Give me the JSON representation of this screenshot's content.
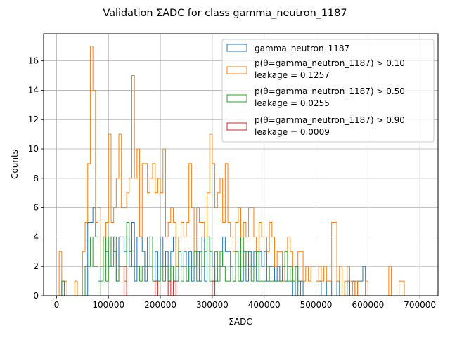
{
  "chart_data": {
    "type": "histogram-step",
    "title": "Validation ΣADC for class gamma_neutron_1187",
    "xlabel": "ΣADC",
    "ylabel": "Counts",
    "xlim": [
      -25000,
      735000
    ],
    "ylim": [
      0,
      17.85
    ],
    "xticks": [
      0,
      100000,
      200000,
      300000,
      400000,
      500000,
      600000,
      700000
    ],
    "xtick_labels": [
      "0",
      "100000",
      "200000",
      "300000",
      "400000",
      "500000",
      "600000",
      "700000"
    ],
    "yticks": [
      0,
      2,
      4,
      6,
      8,
      10,
      12,
      14,
      16
    ],
    "ytick_labels": [
      "0",
      "2",
      "4",
      "6",
      "8",
      "10",
      "12",
      "14",
      "16"
    ],
    "grid": true,
    "legend_position": "top-right",
    "bin_width": 5000,
    "series": [
      {
        "name": "gamma_neutron_1187",
        "color": "#1f77b4",
        "points": [
          [
            10000,
            1
          ],
          [
            60000,
            5
          ],
          [
            65000,
            5
          ],
          [
            70000,
            6
          ],
          [
            75000,
            4
          ],
          [
            80000,
            1
          ],
          [
            85000,
            2
          ],
          [
            90000,
            4
          ],
          [
            95000,
            3
          ],
          [
            100000,
            2
          ],
          [
            105000,
            4
          ],
          [
            110000,
            3
          ],
          [
            115000,
            1
          ],
          [
            120000,
            4
          ],
          [
            125000,
            4
          ],
          [
            130000,
            3
          ],
          [
            135000,
            4
          ],
          [
            140000,
            2
          ],
          [
            145000,
            5
          ],
          [
            150000,
            1
          ],
          [
            155000,
            4
          ],
          [
            160000,
            4
          ],
          [
            165000,
            3
          ],
          [
            170000,
            1
          ],
          [
            175000,
            4
          ],
          [
            180000,
            2
          ],
          [
            185000,
            1
          ],
          [
            190000,
            3
          ],
          [
            195000,
            1
          ],
          [
            200000,
            4
          ],
          [
            205000,
            2
          ],
          [
            210000,
            3
          ],
          [
            215000,
            1
          ],
          [
            220000,
            3
          ],
          [
            225000,
            4
          ],
          [
            230000,
            1
          ],
          [
            235000,
            3
          ],
          [
            240000,
            2
          ],
          [
            245000,
            3
          ],
          [
            250000,
            1
          ],
          [
            255000,
            3
          ],
          [
            260000,
            1
          ],
          [
            265000,
            2
          ],
          [
            270000,
            3
          ],
          [
            275000,
            1
          ],
          [
            280000,
            4
          ],
          [
            285000,
            1
          ],
          [
            290000,
            4
          ],
          [
            295000,
            3
          ],
          [
            300000,
            2
          ],
          [
            305000,
            1
          ],
          [
            310000,
            2
          ],
          [
            315000,
            2
          ],
          [
            320000,
            4
          ],
          [
            325000,
            3
          ],
          [
            330000,
            3
          ],
          [
            335000,
            2
          ],
          [
            340000,
            1
          ],
          [
            345000,
            3
          ],
          [
            350000,
            2
          ],
          [
            355000,
            1
          ],
          [
            360000,
            3
          ],
          [
            365000,
            1
          ],
          [
            370000,
            3
          ],
          [
            375000,
            2
          ],
          [
            380000,
            3
          ],
          [
            385000,
            1
          ],
          [
            390000,
            3
          ],
          [
            395000,
            2
          ],
          [
            400000,
            3
          ],
          [
            405000,
            1
          ],
          [
            410000,
            2
          ],
          [
            415000,
            2
          ],
          [
            420000,
            1
          ],
          [
            425000,
            2
          ],
          [
            430000,
            1
          ],
          [
            435000,
            2
          ],
          [
            440000,
            1
          ],
          [
            445000,
            2
          ],
          [
            450000,
            1
          ],
          [
            460000,
            2
          ],
          [
            470000,
            1
          ],
          [
            500000,
            1
          ],
          [
            505000,
            1
          ],
          [
            520000,
            1
          ],
          [
            525000,
            1
          ],
          [
            540000,
            1
          ],
          [
            560000,
            1
          ],
          [
            570000,
            1
          ],
          [
            580000,
            1
          ],
          [
            585000,
            1
          ],
          [
            590000,
            2
          ]
        ]
      },
      {
        "name": "p(θ=gamma_neutron_1187) > 0.10",
        "leakage": "leakage = 0.1257",
        "color": "#ff7f0e",
        "points": [
          [
            5000,
            3
          ],
          [
            10000,
            1
          ],
          [
            15000,
            1
          ],
          [
            35000,
            1
          ],
          [
            50000,
            3
          ],
          [
            55000,
            5
          ],
          [
            60000,
            9
          ],
          [
            65000,
            17
          ],
          [
            70000,
            14
          ],
          [
            75000,
            5
          ],
          [
            80000,
            6
          ],
          [
            85000,
            2
          ],
          [
            90000,
            4
          ],
          [
            95000,
            5
          ],
          [
            100000,
            11
          ],
          [
            105000,
            5
          ],
          [
            110000,
            6
          ],
          [
            115000,
            8
          ],
          [
            120000,
            11
          ],
          [
            125000,
            6
          ],
          [
            130000,
            6
          ],
          [
            135000,
            7
          ],
          [
            140000,
            8
          ],
          [
            145000,
            15
          ],
          [
            150000,
            8
          ],
          [
            155000,
            10
          ],
          [
            160000,
            4
          ],
          [
            165000,
            9
          ],
          [
            170000,
            9
          ],
          [
            175000,
            7
          ],
          [
            180000,
            8
          ],
          [
            185000,
            9
          ],
          [
            190000,
            7
          ],
          [
            195000,
            8
          ],
          [
            200000,
            7
          ],
          [
            205000,
            10
          ],
          [
            210000,
            4
          ],
          [
            215000,
            5
          ],
          [
            220000,
            6
          ],
          [
            225000,
            5
          ],
          [
            230000,
            2
          ],
          [
            235000,
            4
          ],
          [
            240000,
            5
          ],
          [
            245000,
            4
          ],
          [
            250000,
            5
          ],
          [
            255000,
            9
          ],
          [
            260000,
            6
          ],
          [
            265000,
            3
          ],
          [
            270000,
            6
          ],
          [
            275000,
            5
          ],
          [
            280000,
            5
          ],
          [
            285000,
            4
          ],
          [
            290000,
            7
          ],
          [
            295000,
            11
          ],
          [
            300000,
            9
          ],
          [
            305000,
            6
          ],
          [
            310000,
            7
          ],
          [
            315000,
            8
          ],
          [
            320000,
            5
          ],
          [
            325000,
            9
          ],
          [
            330000,
            5
          ],
          [
            335000,
            4
          ],
          [
            340000,
            3
          ],
          [
            345000,
            5
          ],
          [
            350000,
            6
          ],
          [
            355000,
            2
          ],
          [
            360000,
            5
          ],
          [
            365000,
            4
          ],
          [
            370000,
            6
          ],
          [
            375000,
            6
          ],
          [
            380000,
            4
          ],
          [
            385000,
            3
          ],
          [
            390000,
            5
          ],
          [
            395000,
            4
          ],
          [
            400000,
            4
          ],
          [
            405000,
            3
          ],
          [
            410000,
            5
          ],
          [
            415000,
            4
          ],
          [
            420000,
            2
          ],
          [
            425000,
            3
          ],
          [
            430000,
            3
          ],
          [
            435000,
            1
          ],
          [
            440000,
            3
          ],
          [
            445000,
            4
          ],
          [
            450000,
            3
          ],
          [
            455000,
            1
          ],
          [
            460000,
            2
          ],
          [
            465000,
            3
          ],
          [
            470000,
            3
          ],
          [
            475000,
            1
          ],
          [
            480000,
            2
          ],
          [
            485000,
            1
          ],
          [
            490000,
            2
          ],
          [
            495000,
            2
          ],
          [
            500000,
            1
          ],
          [
            505000,
            2
          ],
          [
            510000,
            1
          ],
          [
            515000,
            2
          ],
          [
            520000,
            1
          ],
          [
            525000,
            1
          ],
          [
            530000,
            5
          ],
          [
            535000,
            5
          ],
          [
            540000,
            1
          ],
          [
            545000,
            2
          ],
          [
            555000,
            1
          ],
          [
            560000,
            2
          ],
          [
            565000,
            1
          ],
          [
            575000,
            1
          ],
          [
            595000,
            1
          ],
          [
            640000,
            2
          ],
          [
            660000,
            1
          ],
          [
            665000,
            1
          ]
        ]
      },
      {
        "name": "p(θ=gamma_neutron_1187) > 0.50",
        "leakage": "leakage = 0.0255",
        "color": "#2ca02c",
        "points": [
          [
            10000,
            1
          ],
          [
            55000,
            2
          ],
          [
            60000,
            2
          ],
          [
            65000,
            4
          ],
          [
            70000,
            2
          ],
          [
            75000,
            2
          ],
          [
            85000,
            1
          ],
          [
            90000,
            4
          ],
          [
            95000,
            1
          ],
          [
            100000,
            4
          ],
          [
            105000,
            2
          ],
          [
            110000,
            4
          ],
          [
            115000,
            1
          ],
          [
            120000,
            2
          ],
          [
            125000,
            2
          ],
          [
            130000,
            1
          ],
          [
            135000,
            5
          ],
          [
            140000,
            3
          ],
          [
            145000,
            2
          ],
          [
            150000,
            2
          ],
          [
            155000,
            2
          ],
          [
            160000,
            1
          ],
          [
            165000,
            2
          ],
          [
            170000,
            2
          ],
          [
            175000,
            2
          ],
          [
            180000,
            4
          ],
          [
            185000,
            1
          ],
          [
            190000,
            1
          ],
          [
            195000,
            1
          ],
          [
            200000,
            2
          ],
          [
            205000,
            1
          ],
          [
            210000,
            2
          ],
          [
            215000,
            1
          ],
          [
            220000,
            2
          ],
          [
            225000,
            1
          ],
          [
            230000,
            2
          ],
          [
            235000,
            3
          ],
          [
            240000,
            1
          ],
          [
            245000,
            2
          ],
          [
            250000,
            1
          ],
          [
            255000,
            2
          ],
          [
            260000,
            2
          ],
          [
            265000,
            3
          ],
          [
            270000,
            1
          ],
          [
            275000,
            3
          ],
          [
            280000,
            2
          ],
          [
            285000,
            3
          ],
          [
            290000,
            4
          ],
          [
            295000,
            1
          ],
          [
            300000,
            1
          ],
          [
            305000,
            3
          ],
          [
            310000,
            1
          ],
          [
            315000,
            3
          ],
          [
            320000,
            2
          ],
          [
            325000,
            1
          ],
          [
            330000,
            1
          ],
          [
            335000,
            2
          ],
          [
            340000,
            1
          ],
          [
            345000,
            3
          ],
          [
            350000,
            1
          ],
          [
            355000,
            4
          ],
          [
            360000,
            2
          ],
          [
            365000,
            3
          ],
          [
            370000,
            2
          ],
          [
            375000,
            1
          ],
          [
            380000,
            2
          ],
          [
            385000,
            3
          ],
          [
            390000,
            1
          ],
          [
            395000,
            1
          ],
          [
            400000,
            1
          ],
          [
            405000,
            2
          ],
          [
            410000,
            1
          ],
          [
            415000,
            1
          ],
          [
            420000,
            1
          ],
          [
            425000,
            1
          ],
          [
            430000,
            1
          ],
          [
            435000,
            2
          ],
          [
            440000,
            3
          ],
          [
            445000,
            1
          ],
          [
            450000,
            2
          ],
          [
            455000,
            1
          ],
          [
            460000,
            2
          ],
          [
            465000,
            1
          ]
        ]
      },
      {
        "name": "p(θ=gamma_neutron_1187) > 0.90",
        "leakage": "leakage = 0.0009",
        "color": "#d62728",
        "points": [
          [
            130000,
            2
          ],
          [
            190000,
            1
          ],
          [
            215000,
            1
          ],
          [
            225000,
            1
          ],
          [
            300000,
            1
          ]
        ]
      }
    ]
  }
}
